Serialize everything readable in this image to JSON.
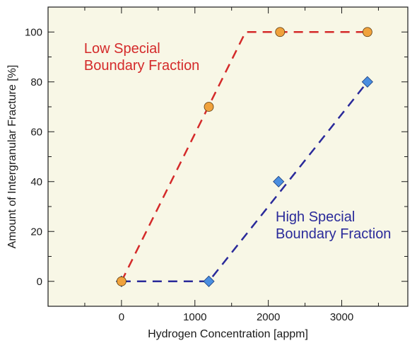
{
  "chart_data": {
    "type": "line",
    "title": "",
    "xlabel": "Hydrogen Concentration [appm]",
    "ylabel": "Amount of Intergranular Fracture [%]",
    "xlim": [
      -1000,
      3900
    ],
    "ylim": [
      -10,
      110
    ],
    "x_ticks": [
      0,
      1000,
      2000,
      3000
    ],
    "y_ticks": [
      0,
      20,
      40,
      60,
      80,
      100
    ],
    "x_tick_labels": [
      "0",
      "1000",
      "2000",
      "3000"
    ],
    "y_tick_labels": [
      "0",
      "20",
      "40",
      "60",
      "80",
      "100"
    ],
    "grid": false,
    "background": "#f8f7e6",
    "series": [
      {
        "name": "Low Special Boundary Fraction",
        "color": "#d42a2a",
        "marker": "circle",
        "marker_fill": "#f0a23c",
        "points": [
          {
            "x": 0,
            "y": 0
          },
          {
            "x": 1190,
            "y": 70
          },
          {
            "x": 2160,
            "y": 100
          },
          {
            "x": 3350,
            "y": 100
          }
        ],
        "trend": [
          {
            "x": 0,
            "y": 0
          },
          {
            "x": 1690,
            "y": 100
          },
          {
            "x": 3350,
            "y": 100
          }
        ]
      },
      {
        "name": "High Special Boundary Fraction",
        "color": "#2a2a9a",
        "marker": "diamond",
        "marker_fill": "#4a8ee0",
        "points": [
          {
            "x": 0,
            "y": 0
          },
          {
            "x": 1190,
            "y": 0
          },
          {
            "x": 2140,
            "y": 40
          },
          {
            "x": 3350,
            "y": 80
          }
        ],
        "trend": [
          {
            "x": 0,
            "y": 0
          },
          {
            "x": 1190,
            "y": 0
          },
          {
            "x": 3350,
            "y": 80
          }
        ]
      }
    ],
    "annotations": [
      {
        "lines": [
          "Low Special",
          "Boundary Fraction"
        ],
        "x": -510,
        "y": 91.5,
        "color": "#d42a2a"
      },
      {
        "lines": [
          "High Special",
          "Boundary Fraction"
        ],
        "x": 2100,
        "y": 24,
        "color": "#2a2a9a"
      }
    ]
  }
}
